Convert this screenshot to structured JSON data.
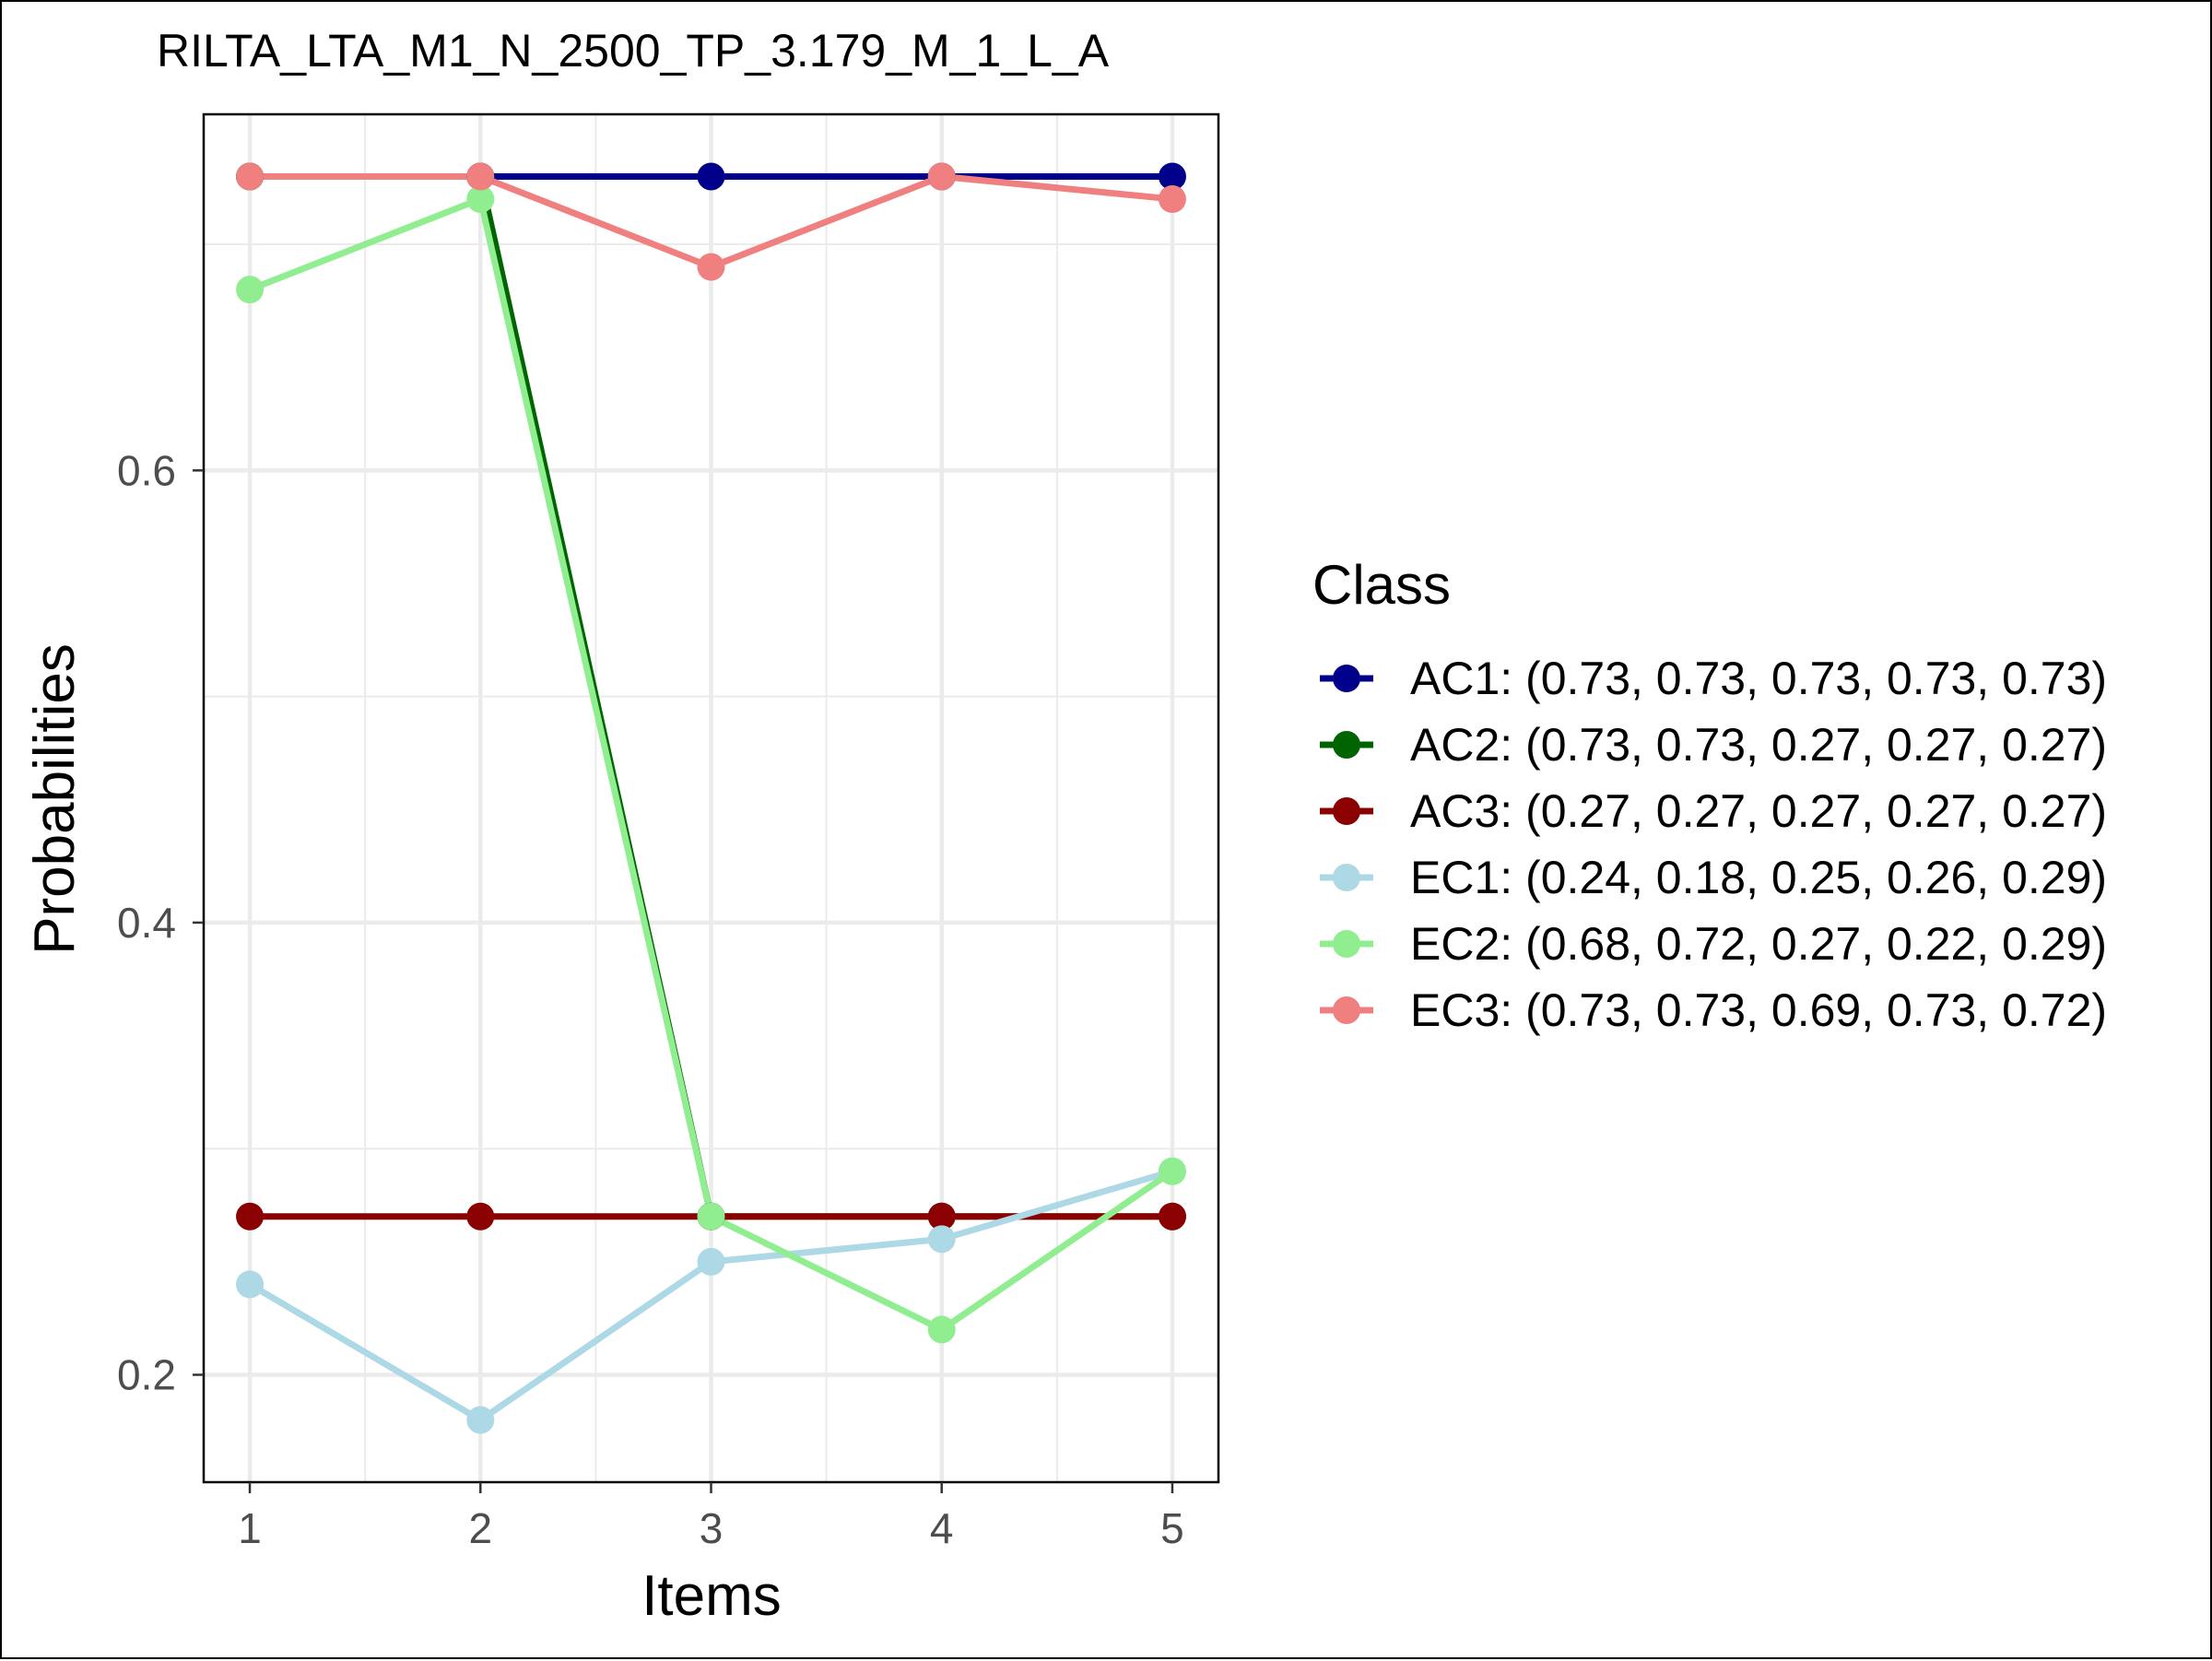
{
  "chart_data": {
    "type": "line",
    "title": "RILTA_LTA_M1_N_2500_TP_3.179_M_1_L_A",
    "xlabel": "Items",
    "ylabel": "Probabilities",
    "x": [
      1,
      2,
      3,
      4,
      5
    ],
    "xticks": [
      "1",
      "2",
      "3",
      "4",
      "5"
    ],
    "yticks": [
      "0.2",
      "0.4",
      "0.6"
    ],
    "xlim": [
      0.8,
      5.2
    ],
    "ylim": [
      0.1525,
      0.7575
    ],
    "grid": true,
    "legend": {
      "title": "Class",
      "position": "right"
    },
    "series": [
      {
        "name": "AC1: (0.73, 0.73, 0.73, 0.73, 0.73)",
        "color": "#00008b",
        "values": [
          0.73,
          0.73,
          0.73,
          0.73,
          0.73
        ]
      },
      {
        "name": "AC2: (0.73, 0.73, 0.27, 0.27, 0.27)",
        "color": "#006400",
        "values": [
          0.73,
          0.73,
          0.27,
          0.27,
          0.27
        ]
      },
      {
        "name": "AC3: (0.27, 0.27, 0.27, 0.27, 0.27)",
        "color": "#8b0000",
        "values": [
          0.27,
          0.27,
          0.27,
          0.27,
          0.27
        ]
      },
      {
        "name": "EC1: (0.24, 0.18, 0.25, 0.26, 0.29)",
        "color": "#add8e6",
        "values": [
          0.24,
          0.18,
          0.25,
          0.26,
          0.29
        ]
      },
      {
        "name": "EC2: (0.68, 0.72, 0.27, 0.22, 0.29)",
        "color": "#90ee90",
        "values": [
          0.68,
          0.72,
          0.27,
          0.22,
          0.29
        ]
      },
      {
        "name": "EC3: (0.73, 0.73, 0.69, 0.73, 0.72)",
        "color": "#f08080",
        "values": [
          0.73,
          0.73,
          0.69,
          0.73,
          0.72
        ]
      }
    ]
  }
}
